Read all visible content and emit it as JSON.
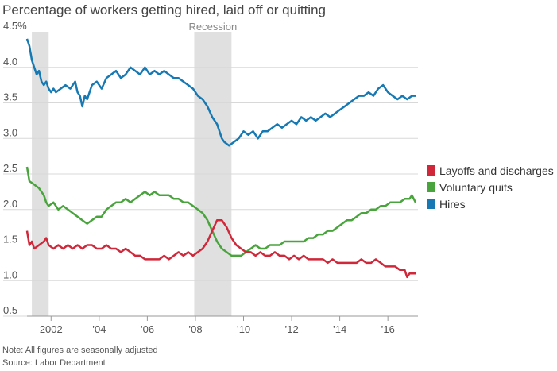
{
  "title": "Percentage of workers getting hired, laid off or quitting",
  "notes": {
    "note": "Note: All figures are seasonally adjusted",
    "source": "Source: Labor Department"
  },
  "colors": {
    "layoffs": "#d0283a",
    "quits": "#4aa43d",
    "hires": "#1679b3",
    "recession": "#e0e0e0",
    "grid": "#d8d8d8",
    "axis_text": "#555555"
  },
  "chart_data": {
    "type": "line",
    "title": "Percentage of workers getting hired, laid off or quitting",
    "xlim": [
      2001.0,
      2017.25
    ],
    "ylim": [
      0.5,
      4.5
    ],
    "yticks": [
      {
        "value": 4.5,
        "label": "4.5%"
      },
      {
        "value": 4.0,
        "label": "4.0"
      },
      {
        "value": 3.5,
        "label": "3.5"
      },
      {
        "value": 3.0,
        "label": "3.0"
      },
      {
        "value": 2.5,
        "label": "2.5"
      },
      {
        "value": 2.0,
        "label": "2.0"
      },
      {
        "value": 1.5,
        "label": "1.5"
      },
      {
        "value": 1.0,
        "label": "1.0"
      },
      {
        "value": 0.5,
        "label": "0.5"
      }
    ],
    "xticks": [
      {
        "value": 2002,
        "label": "2002"
      },
      {
        "value": 2004,
        "label": "’04"
      },
      {
        "value": 2006,
        "label": "’06"
      },
      {
        "value": 2008,
        "label": "’08"
      },
      {
        "value": 2010,
        "label": "’10"
      },
      {
        "value": 2012,
        "label": "’12"
      },
      {
        "value": 2014,
        "label": "’14"
      },
      {
        "value": 2016,
        "label": "’16"
      }
    ],
    "grid": true,
    "legend_position": "right",
    "recessions": [
      {
        "start": 2001.2,
        "end": 2001.9,
        "label": ""
      },
      {
        "start": 2007.95,
        "end": 2009.5,
        "label": "Recession"
      }
    ],
    "series": [
      {
        "name": "Hires",
        "color_key": "hires",
        "points": [
          [
            2001.0,
            4.4
          ],
          [
            2001.1,
            4.3
          ],
          [
            2001.2,
            4.1
          ],
          [
            2001.3,
            4.0
          ],
          [
            2001.4,
            3.9
          ],
          [
            2001.5,
            3.95
          ],
          [
            2001.6,
            3.8
          ],
          [
            2001.7,
            3.75
          ],
          [
            2001.8,
            3.8
          ],
          [
            2001.9,
            3.7
          ],
          [
            2002.0,
            3.65
          ],
          [
            2002.1,
            3.7
          ],
          [
            2002.2,
            3.65
          ],
          [
            2002.4,
            3.7
          ],
          [
            2002.6,
            3.75
          ],
          [
            2002.8,
            3.7
          ],
          [
            2003.0,
            3.8
          ],
          [
            2003.1,
            3.65
          ],
          [
            2003.2,
            3.6
          ],
          [
            2003.3,
            3.45
          ],
          [
            2003.4,
            3.6
          ],
          [
            2003.5,
            3.55
          ],
          [
            2003.7,
            3.75
          ],
          [
            2003.9,
            3.8
          ],
          [
            2004.1,
            3.7
          ],
          [
            2004.3,
            3.85
          ],
          [
            2004.5,
            3.9
          ],
          [
            2004.7,
            3.95
          ],
          [
            2004.9,
            3.85
          ],
          [
            2005.1,
            3.9
          ],
          [
            2005.3,
            4.0
          ],
          [
            2005.5,
            3.95
          ],
          [
            2005.7,
            3.9
          ],
          [
            2005.9,
            4.0
          ],
          [
            2006.1,
            3.9
          ],
          [
            2006.3,
            3.95
          ],
          [
            2006.5,
            3.9
          ],
          [
            2006.7,
            3.95
          ],
          [
            2006.9,
            3.9
          ],
          [
            2007.1,
            3.85
          ],
          [
            2007.3,
            3.85
          ],
          [
            2007.5,
            3.8
          ],
          [
            2007.7,
            3.75
          ],
          [
            2007.9,
            3.7
          ],
          [
            2008.1,
            3.6
          ],
          [
            2008.3,
            3.55
          ],
          [
            2008.5,
            3.45
          ],
          [
            2008.7,
            3.3
          ],
          [
            2008.9,
            3.2
          ],
          [
            2009.1,
            3.0
          ],
          [
            2009.2,
            2.95
          ],
          [
            2009.4,
            2.9
          ],
          [
            2009.6,
            2.95
          ],
          [
            2009.8,
            3.0
          ],
          [
            2010.0,
            3.1
          ],
          [
            2010.2,
            3.05
          ],
          [
            2010.4,
            3.1
          ],
          [
            2010.6,
            3.0
          ],
          [
            2010.8,
            3.1
          ],
          [
            2011.0,
            3.1
          ],
          [
            2011.2,
            3.15
          ],
          [
            2011.4,
            3.2
          ],
          [
            2011.6,
            3.15
          ],
          [
            2011.8,
            3.2
          ],
          [
            2012.0,
            3.25
          ],
          [
            2012.2,
            3.2
          ],
          [
            2012.4,
            3.3
          ],
          [
            2012.6,
            3.25
          ],
          [
            2012.8,
            3.3
          ],
          [
            2013.0,
            3.25
          ],
          [
            2013.2,
            3.3
          ],
          [
            2013.4,
            3.35
          ],
          [
            2013.6,
            3.3
          ],
          [
            2013.8,
            3.35
          ],
          [
            2014.0,
            3.4
          ],
          [
            2014.2,
            3.45
          ],
          [
            2014.4,
            3.5
          ],
          [
            2014.6,
            3.55
          ],
          [
            2014.8,
            3.6
          ],
          [
            2015.0,
            3.6
          ],
          [
            2015.2,
            3.65
          ],
          [
            2015.4,
            3.6
          ],
          [
            2015.6,
            3.7
          ],
          [
            2015.8,
            3.75
          ],
          [
            2016.0,
            3.65
          ],
          [
            2016.2,
            3.6
          ],
          [
            2016.4,
            3.55
          ],
          [
            2016.6,
            3.6
          ],
          [
            2016.8,
            3.55
          ],
          [
            2017.0,
            3.6
          ],
          [
            2017.15,
            3.6
          ]
        ]
      },
      {
        "name": "Voluntary quits",
        "color_key": "quits",
        "points": [
          [
            2001.0,
            2.6
          ],
          [
            2001.1,
            2.4
          ],
          [
            2001.3,
            2.35
          ],
          [
            2001.5,
            2.3
          ],
          [
            2001.7,
            2.2
          ],
          [
            2001.8,
            2.1
          ],
          [
            2001.9,
            2.05
          ],
          [
            2002.1,
            2.1
          ],
          [
            2002.3,
            2.0
          ],
          [
            2002.5,
            2.05
          ],
          [
            2002.7,
            2.0
          ],
          [
            2002.9,
            1.95
          ],
          [
            2003.1,
            1.9
          ],
          [
            2003.3,
            1.85
          ],
          [
            2003.5,
            1.8
          ],
          [
            2003.7,
            1.85
          ],
          [
            2003.9,
            1.9
          ],
          [
            2004.1,
            1.9
          ],
          [
            2004.3,
            2.0
          ],
          [
            2004.5,
            2.05
          ],
          [
            2004.7,
            2.1
          ],
          [
            2004.9,
            2.1
          ],
          [
            2005.1,
            2.15
          ],
          [
            2005.3,
            2.1
          ],
          [
            2005.5,
            2.15
          ],
          [
            2005.7,
            2.2
          ],
          [
            2005.9,
            2.25
          ],
          [
            2006.1,
            2.2
          ],
          [
            2006.3,
            2.25
          ],
          [
            2006.5,
            2.2
          ],
          [
            2006.7,
            2.2
          ],
          [
            2006.9,
            2.2
          ],
          [
            2007.1,
            2.15
          ],
          [
            2007.3,
            2.15
          ],
          [
            2007.5,
            2.1
          ],
          [
            2007.7,
            2.1
          ],
          [
            2007.9,
            2.05
          ],
          [
            2008.1,
            2.0
          ],
          [
            2008.3,
            1.95
          ],
          [
            2008.5,
            1.85
          ],
          [
            2008.7,
            1.7
          ],
          [
            2008.9,
            1.55
          ],
          [
            2009.1,
            1.45
          ],
          [
            2009.3,
            1.4
          ],
          [
            2009.5,
            1.35
          ],
          [
            2009.7,
            1.35
          ],
          [
            2009.9,
            1.35
          ],
          [
            2010.1,
            1.4
          ],
          [
            2010.3,
            1.45
          ],
          [
            2010.5,
            1.5
          ],
          [
            2010.7,
            1.45
          ],
          [
            2010.9,
            1.45
          ],
          [
            2011.1,
            1.5
          ],
          [
            2011.3,
            1.5
          ],
          [
            2011.5,
            1.5
          ],
          [
            2011.7,
            1.55
          ],
          [
            2011.9,
            1.55
          ],
          [
            2012.1,
            1.55
          ],
          [
            2012.3,
            1.55
          ],
          [
            2012.5,
            1.55
          ],
          [
            2012.7,
            1.6
          ],
          [
            2012.9,
            1.6
          ],
          [
            2013.1,
            1.65
          ],
          [
            2013.3,
            1.65
          ],
          [
            2013.5,
            1.7
          ],
          [
            2013.7,
            1.7
          ],
          [
            2013.9,
            1.75
          ],
          [
            2014.1,
            1.8
          ],
          [
            2014.3,
            1.85
          ],
          [
            2014.5,
            1.85
          ],
          [
            2014.7,
            1.9
          ],
          [
            2014.9,
            1.95
          ],
          [
            2015.1,
            1.95
          ],
          [
            2015.3,
            2.0
          ],
          [
            2015.5,
            2.0
          ],
          [
            2015.7,
            2.05
          ],
          [
            2015.9,
            2.05
          ],
          [
            2016.1,
            2.1
          ],
          [
            2016.3,
            2.1
          ],
          [
            2016.5,
            2.1
          ],
          [
            2016.7,
            2.15
          ],
          [
            2016.9,
            2.15
          ],
          [
            2017.0,
            2.2
          ],
          [
            2017.15,
            2.1
          ]
        ]
      },
      {
        "name": "Layoffs and discharges",
        "color_key": "layoffs",
        "points": [
          [
            2001.0,
            1.7
          ],
          [
            2001.1,
            1.5
          ],
          [
            2001.2,
            1.55
          ],
          [
            2001.3,
            1.45
          ],
          [
            2001.5,
            1.5
          ],
          [
            2001.7,
            1.55
          ],
          [
            2001.8,
            1.6
          ],
          [
            2001.9,
            1.5
          ],
          [
            2002.1,
            1.45
          ],
          [
            2002.3,
            1.5
          ],
          [
            2002.5,
            1.45
          ],
          [
            2002.7,
            1.5
          ],
          [
            2002.9,
            1.45
          ],
          [
            2003.1,
            1.5
          ],
          [
            2003.3,
            1.45
          ],
          [
            2003.5,
            1.5
          ],
          [
            2003.7,
            1.5
          ],
          [
            2003.9,
            1.45
          ],
          [
            2004.1,
            1.45
          ],
          [
            2004.3,
            1.5
          ],
          [
            2004.5,
            1.45
          ],
          [
            2004.7,
            1.45
          ],
          [
            2004.9,
            1.4
          ],
          [
            2005.1,
            1.45
          ],
          [
            2005.3,
            1.4
          ],
          [
            2005.5,
            1.35
          ],
          [
            2005.7,
            1.35
          ],
          [
            2005.9,
            1.3
          ],
          [
            2006.1,
            1.3
          ],
          [
            2006.3,
            1.3
          ],
          [
            2006.5,
            1.3
          ],
          [
            2006.7,
            1.35
          ],
          [
            2006.9,
            1.3
          ],
          [
            2007.1,
            1.35
          ],
          [
            2007.3,
            1.4
          ],
          [
            2007.5,
            1.35
          ],
          [
            2007.7,
            1.4
          ],
          [
            2007.9,
            1.35
          ],
          [
            2008.1,
            1.4
          ],
          [
            2008.3,
            1.45
          ],
          [
            2008.5,
            1.55
          ],
          [
            2008.7,
            1.7
          ],
          [
            2008.9,
            1.85
          ],
          [
            2009.1,
            1.85
          ],
          [
            2009.3,
            1.75
          ],
          [
            2009.5,
            1.6
          ],
          [
            2009.7,
            1.5
          ],
          [
            2009.9,
            1.45
          ],
          [
            2010.1,
            1.4
          ],
          [
            2010.3,
            1.4
          ],
          [
            2010.5,
            1.35
          ],
          [
            2010.7,
            1.4
          ],
          [
            2010.9,
            1.35
          ],
          [
            2011.1,
            1.35
          ],
          [
            2011.3,
            1.4
          ],
          [
            2011.5,
            1.35
          ],
          [
            2011.7,
            1.35
          ],
          [
            2011.9,
            1.3
          ],
          [
            2012.1,
            1.35
          ],
          [
            2012.3,
            1.3
          ],
          [
            2012.5,
            1.35
          ],
          [
            2012.7,
            1.3
          ],
          [
            2012.9,
            1.3
          ],
          [
            2013.1,
            1.3
          ],
          [
            2013.3,
            1.3
          ],
          [
            2013.5,
            1.25
          ],
          [
            2013.7,
            1.3
          ],
          [
            2013.9,
            1.25
          ],
          [
            2014.1,
            1.25
          ],
          [
            2014.3,
            1.25
          ],
          [
            2014.5,
            1.25
          ],
          [
            2014.7,
            1.25
          ],
          [
            2014.9,
            1.3
          ],
          [
            2015.1,
            1.25
          ],
          [
            2015.3,
            1.25
          ],
          [
            2015.5,
            1.3
          ],
          [
            2015.7,
            1.25
          ],
          [
            2015.9,
            1.2
          ],
          [
            2016.1,
            1.2
          ],
          [
            2016.3,
            1.2
          ],
          [
            2016.5,
            1.15
          ],
          [
            2016.7,
            1.15
          ],
          [
            2016.8,
            1.05
          ],
          [
            2016.9,
            1.1
          ],
          [
            2017.0,
            1.1
          ],
          [
            2017.15,
            1.1
          ]
        ]
      }
    ]
  },
  "legend": [
    {
      "label": "Layoffs and discharges",
      "color_key": "layoffs"
    },
    {
      "label": "Voluntary quits",
      "color_key": "quits"
    },
    {
      "label": "Hires",
      "color_key": "hires"
    }
  ]
}
